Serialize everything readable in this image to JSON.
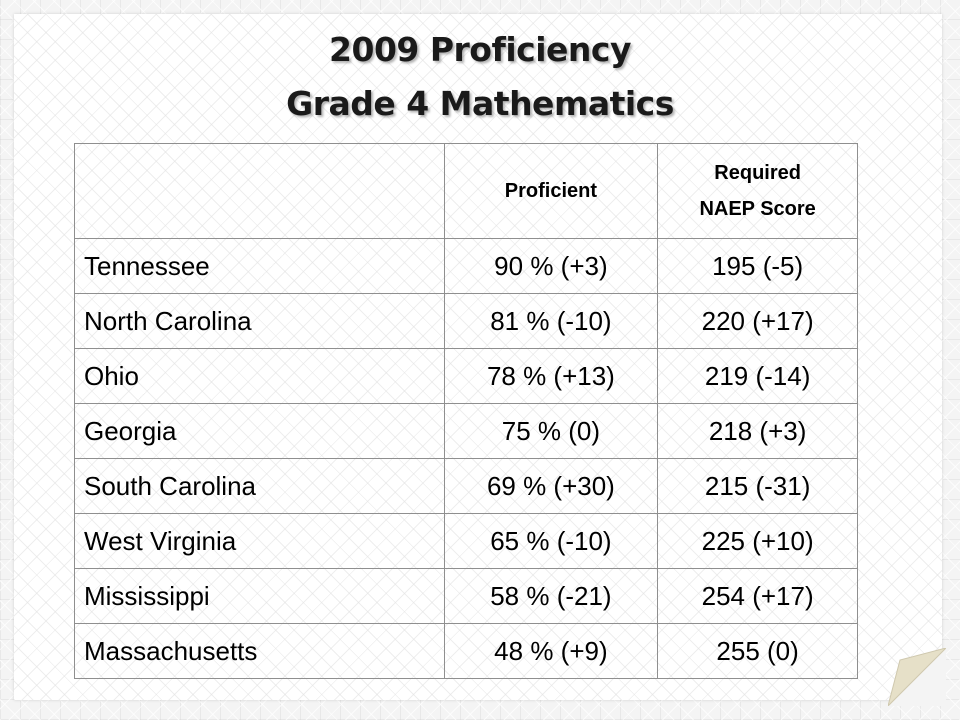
{
  "title": {
    "line1": "2009 Proficiency",
    "line2": "Grade 4 Mathematics"
  },
  "table": {
    "headers": {
      "state": "",
      "proficient": "Proficient",
      "required_line1": "Required",
      "required_line2": "NAEP Score"
    },
    "rows": [
      {
        "state": "Tennessee",
        "proficient": "90 % (+3)",
        "naep": "195 (-5)"
      },
      {
        "state": "North Carolina",
        "proficient": "81 % (-10)",
        "naep": "220 (+17)"
      },
      {
        "state": "Ohio",
        "proficient": "78 % (+13)",
        "naep": "219 (-14)"
      },
      {
        "state": "Georgia",
        "proficient": "75 % (0)",
        "naep": "218 (+3)"
      },
      {
        "state": "South Carolina",
        "proficient": "69 % (+30)",
        "naep": "215 (-31)"
      },
      {
        "state": "West Virginia",
        "proficient": "65 % (-10)",
        "naep": "225 (+10)"
      },
      {
        "state": "Mississippi",
        "proficient": "58 % (-21)",
        "naep": "254 (+17)"
      },
      {
        "state": "Massachusetts",
        "proficient": "48 % (+9)",
        "naep": "255 (0)"
      }
    ]
  },
  "colors": {
    "background": "#f4f4f4",
    "text": "#000000",
    "border": "#8f8f8f",
    "fold": "#e6e0c8"
  }
}
